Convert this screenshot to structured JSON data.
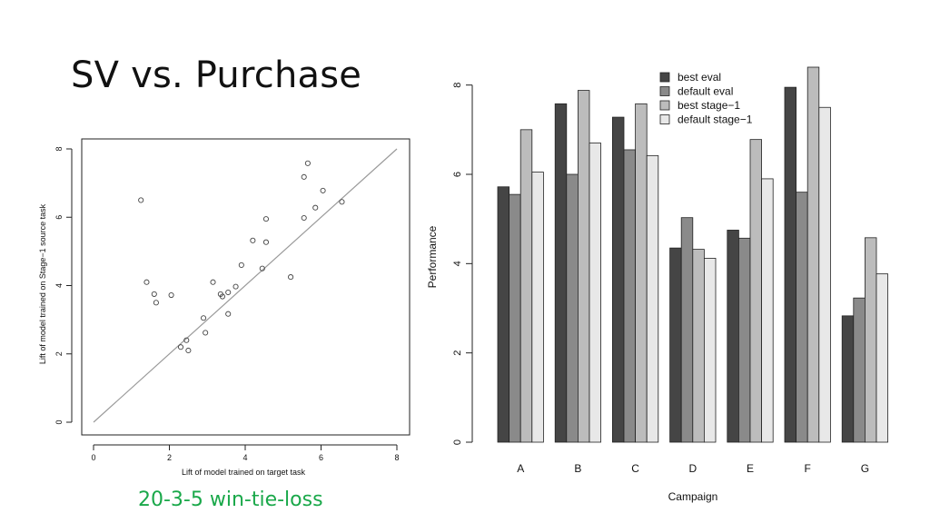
{
  "slide": {
    "title": "SV vs. Purchase",
    "caption": "20-3-5 win-tie-loss"
  },
  "chart_data": [
    {
      "type": "scatter",
      "title": "",
      "xlabel": "Lift of model trained on target task",
      "ylabel": "Lift of model trained on Stage−1 source task",
      "xlim": [
        0,
        8
      ],
      "ylim": [
        0,
        8
      ],
      "xticks": [
        "0",
        "2",
        "4",
        "6",
        "8"
      ],
      "yticks": [
        "0",
        "2",
        "4",
        "6",
        "8"
      ],
      "reference_line": {
        "from": [
          0,
          0
        ],
        "to": [
          8,
          8
        ],
        "color": "#9a9a9a"
      },
      "points": [
        {
          "x": 1.25,
          "y": 6.5
        },
        {
          "x": 1.4,
          "y": 4.1
        },
        {
          "x": 1.6,
          "y": 3.75
        },
        {
          "x": 1.65,
          "y": 3.5
        },
        {
          "x": 2.05,
          "y": 3.72
        },
        {
          "x": 2.3,
          "y": 2.2
        },
        {
          "x": 2.45,
          "y": 2.4
        },
        {
          "x": 2.5,
          "y": 2.1
        },
        {
          "x": 2.9,
          "y": 3.05
        },
        {
          "x": 2.95,
          "y": 2.62
        },
        {
          "x": 3.15,
          "y": 4.1
        },
        {
          "x": 3.35,
          "y": 3.75
        },
        {
          "x": 3.4,
          "y": 3.68
        },
        {
          "x": 3.55,
          "y": 3.8
        },
        {
          "x": 3.55,
          "y": 3.17
        },
        {
          "x": 3.75,
          "y": 3.97
        },
        {
          "x": 3.9,
          "y": 4.6
        },
        {
          "x": 4.2,
          "y": 5.32
        },
        {
          "x": 4.45,
          "y": 4.5
        },
        {
          "x": 4.55,
          "y": 5.95
        },
        {
          "x": 4.55,
          "y": 5.27
        },
        {
          "x": 5.2,
          "y": 4.25
        },
        {
          "x": 5.55,
          "y": 7.18
        },
        {
          "x": 5.55,
          "y": 5.98
        },
        {
          "x": 5.65,
          "y": 7.58
        },
        {
          "x": 5.85,
          "y": 6.28
        },
        {
          "x": 6.05,
          "y": 6.78
        },
        {
          "x": 6.55,
          "y": 6.45
        }
      ]
    },
    {
      "type": "bar",
      "title": "",
      "xlabel": "Campaign",
      "ylabel": "Performance",
      "ylim": [
        0,
        8.4
      ],
      "yticks": [
        "0",
        "2",
        "4",
        "6",
        "8"
      ],
      "categories": [
        "A",
        "B",
        "C",
        "D",
        "E",
        "F",
        "G"
      ],
      "legend_position": "top-right",
      "series": [
        {
          "name": "best eval",
          "color": "#454545",
          "values": [
            5.72,
            7.58,
            7.28,
            4.35,
            4.75,
            7.95,
            2.83
          ]
        },
        {
          "name": "default eval",
          "color": "#8a8a8a",
          "values": [
            5.55,
            6.0,
            6.55,
            5.03,
            4.57,
            5.6,
            3.23
          ]
        },
        {
          "name": "best stage−1",
          "color": "#bcbcbc",
          "values": [
            7.0,
            7.88,
            7.58,
            4.32,
            6.78,
            8.4,
            4.58
          ]
        },
        {
          "name": "default stage−1",
          "color": "#e8e8e8",
          "values": [
            6.05,
            6.7,
            6.42,
            4.12,
            5.9,
            7.5,
            3.77
          ]
        }
      ]
    }
  ]
}
